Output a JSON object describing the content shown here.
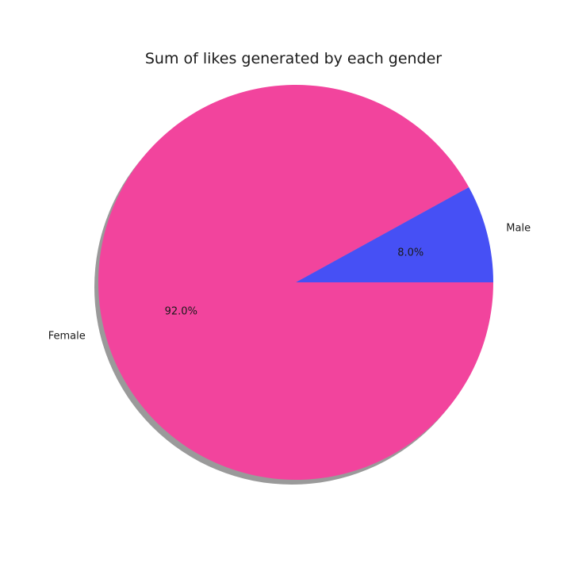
{
  "chart_data": {
    "type": "pie",
    "title": "Sum of likes generated by each gender",
    "shadow": true,
    "start_angle_deg": 0,
    "direction": "counterclockwise",
    "slices": [
      {
        "label": "Male",
        "value": 8.0,
        "pct_label": "8.0%",
        "color": "#4650f5"
      },
      {
        "label": "Female",
        "value": 92.0,
        "pct_label": "92.0%",
        "color": "#f2449d"
      }
    ]
  }
}
